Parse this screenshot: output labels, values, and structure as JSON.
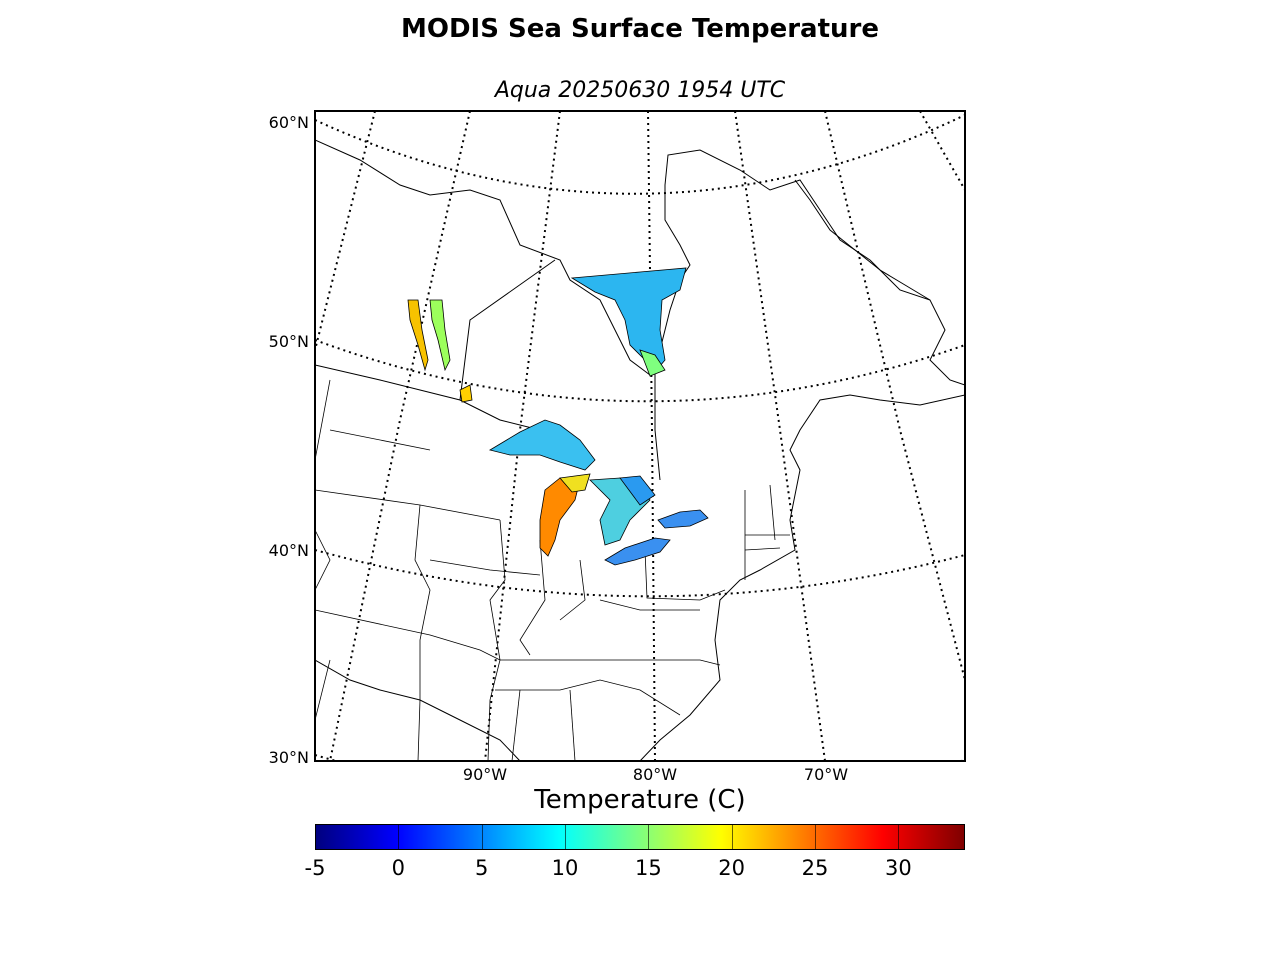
{
  "title": "MODIS Sea Surface Temperature",
  "subtitle": "Aqua 20250630 1954 UTC",
  "map": {
    "projection": "lambert-conformal",
    "lat_labels": [
      "60°N",
      "50°N",
      "40°N",
      "30°N"
    ],
    "lon_labels": [
      "90°W",
      "80°W",
      "70°W"
    ],
    "graticule": "dotted",
    "boundaries": [
      "coastlines",
      "country-borders",
      "state-province-borders"
    ]
  },
  "colorbar": {
    "title": "Temperature (C)",
    "colormap": "jet",
    "min": -5,
    "max": 34,
    "ticks": [
      "-5",
      "0",
      "5",
      "10",
      "15",
      "20",
      "25",
      "30"
    ]
  },
  "sst_regions": [
    {
      "name": "James Bay / Hudson Bay south",
      "dominant_temp_c": 10
    },
    {
      "name": "Lake Superior",
      "dominant_temp_c": 11
    },
    {
      "name": "Lake Michigan",
      "dominant_temp_c": 24
    },
    {
      "name": "Lake Huron",
      "dominant_temp_c": 14
    },
    {
      "name": "Lake Erie",
      "dominant_temp_c": 9
    },
    {
      "name": "Lake Ontario",
      "dominant_temp_c": 10
    },
    {
      "name": "Lake Winnipeg",
      "dominant_temp_c": 22
    }
  ]
}
